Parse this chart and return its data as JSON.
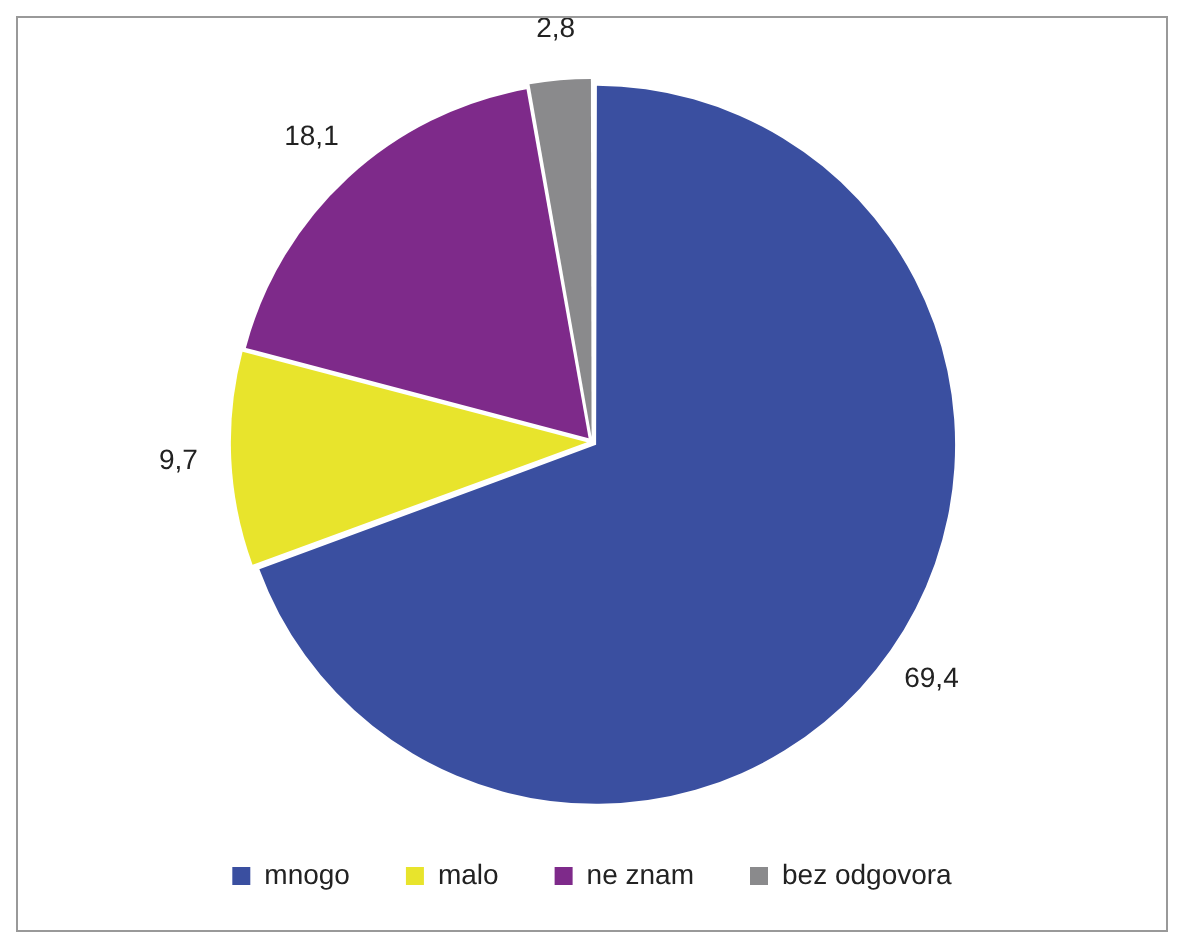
{
  "chart_data": {
    "type": "pie",
    "categories": [
      "mnogo",
      "malo",
      "ne znam",
      "bez odgovora"
    ],
    "values": [
      69.4,
      9.7,
      18.1,
      2.8
    ],
    "colors": [
      "#3a4fa0",
      "#e8e42c",
      "#7e2a8a",
      "#8a8a8c"
    ],
    "value_labels": [
      "69,4",
      "9,7",
      "18,1",
      "2,8"
    ],
    "legend": "bottom"
  }
}
